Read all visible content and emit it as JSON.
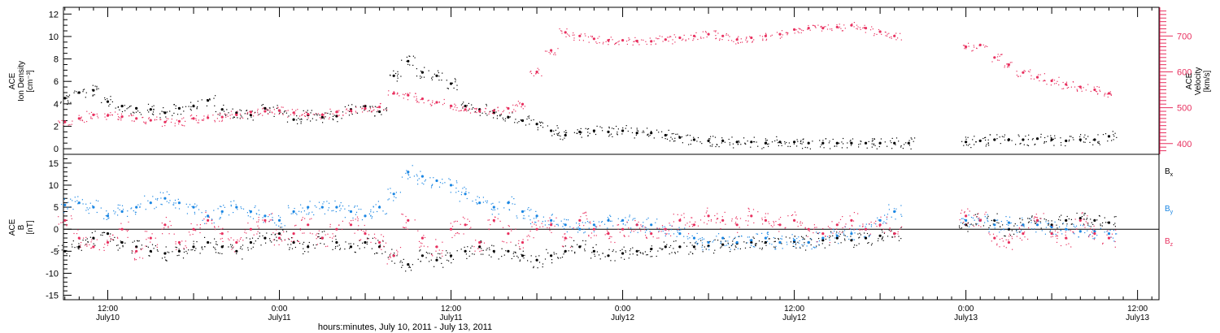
{
  "figure": {
    "xlabel": "hours:minutes, July 10, 2011 - July 13, 2011",
    "x_ticks": [
      {
        "time": "12:00",
        "date": "July10",
        "hours": 12
      },
      {
        "time": "0:00",
        "date": "July11",
        "hours": 24
      },
      {
        "time": "12:00",
        "date": "July11",
        "hours": 36
      },
      {
        "time": "0:00",
        "date": "July12",
        "hours": 48
      },
      {
        "time": "12:00",
        "date": "July12",
        "hours": 60
      },
      {
        "time": "0:00",
        "date": "July13",
        "hours": 72
      },
      {
        "time": "12:00",
        "date": "July13",
        "hours": 84
      }
    ],
    "x_range_hours": [
      8.9,
      85.5
    ],
    "colors": {
      "black": "#000000",
      "pink": "#e8305f",
      "blue": "#1a86e3"
    }
  },
  "chart_data": [
    {
      "type": "scatter",
      "panel": "top",
      "ylabel_left": [
        "ACE",
        "Ion Density",
        "[cm⁻³]"
      ],
      "ylabel_right": [
        "ACE",
        "Velocity",
        "[km/s]"
      ],
      "ylim_left": [
        -0.5,
        12.6
      ],
      "ylim_right": [
        370,
        780
      ],
      "yticks_left": [
        0,
        2,
        4,
        6,
        8,
        10,
        12
      ],
      "yticks_right": [
        400,
        500,
        600,
        700
      ],
      "grid": false,
      "series": [
        {
          "color": "#000000",
          "axis": "left",
          "x": [
            9,
            10,
            11,
            12,
            13,
            14,
            15,
            16,
            17,
            18,
            19,
            20,
            21,
            22,
            23,
            24,
            25,
            26,
            27,
            28,
            29,
            30,
            31,
            32,
            33,
            34,
            35,
            36,
            37,
            38,
            39,
            40,
            41,
            42,
            43,
            44,
            45,
            46,
            47,
            48,
            49,
            50,
            51,
            52,
            53,
            54,
            55,
            56,
            57,
            58,
            59,
            60,
            61,
            62,
            63,
            64,
            65,
            66,
            67,
            68,
            69,
            70,
            71,
            72,
            73,
            74,
            75,
            76,
            77,
            78,
            79,
            80,
            81,
            82
          ],
          "y": [
            4.5,
            5.0,
            5.2,
            4.2,
            3.8,
            3.6,
            3.5,
            3.2,
            3.6,
            3.8,
            4.3,
            3.5,
            3.2,
            3.0,
            3.6,
            3.4,
            2.6,
            3.0,
            2.8,
            2.9,
            3.5,
            3.8,
            3.3,
            6.5,
            7.8,
            6.8,
            6.5,
            5.8,
            3.8,
            3.5,
            3.2,
            2.8,
            2.5,
            2.2,
            1.6,
            1.2,
            1.5,
            1.6,
            1.5,
            1.6,
            1.4,
            1.4,
            1.2,
            1.0,
            0.8,
            0.7,
            0.7,
            0.6,
            0.6,
            0.5,
            0.6,
            0.6,
            0.5,
            0.5,
            0.5,
            0.5,
            0.5,
            0.5,
            0.5,
            0.5,
            null,
            null,
            null,
            0.6,
            0.7,
            0.8,
            0.8,
            0.8,
            0.9,
            0.8,
            0.7,
            0.8,
            0.8,
            1.1
          ]
        },
        {
          "color": "#e8305f",
          "axis": "right",
          "x": [
            9,
            10,
            11,
            12,
            13,
            14,
            15,
            16,
            17,
            18,
            19,
            20,
            21,
            22,
            23,
            24,
            25,
            26,
            27,
            28,
            29,
            30,
            31,
            32,
            33,
            34,
            35,
            36,
            37,
            38,
            39,
            40,
            41,
            42,
            43,
            44,
            45,
            46,
            47,
            48,
            49,
            50,
            51,
            52,
            53,
            54,
            55,
            56,
            57,
            58,
            59,
            60,
            61,
            62,
            63,
            64,
            65,
            66,
            67,
            68,
            69,
            70,
            71,
            72,
            73,
            74,
            75,
            76,
            77,
            78,
            79,
            80,
            81,
            82
          ],
          "y": [
            460,
            470,
            480,
            478,
            475,
            470,
            465,
            460,
            462,
            470,
            472,
            474,
            480,
            488,
            490,
            492,
            486,
            482,
            480,
            488,
            492,
            498,
            502,
            540,
            535,
            525,
            515,
            505,
            495,
            490,
            492,
            498,
            510,
            600,
            660,
            710,
            700,
            692,
            688,
            688,
            686,
            685,
            690,
            695,
            700,
            705,
            700,
            690,
            695,
            700,
            705,
            718,
            722,
            722,
            725,
            730,
            722,
            712,
            700,
            null,
            null,
            null,
            null,
            670,
            675,
            640,
            620,
            598,
            585,
            575,
            565,
            558,
            550,
            540
          ]
        }
      ]
    },
    {
      "type": "scatter",
      "panel": "bottom",
      "ylabel_left": [
        "ACE",
        "B",
        "[nT]"
      ],
      "ylim": [
        -16,
        17
      ],
      "yticks": [
        -15,
        -10,
        -5,
        0,
        5,
        10,
        15
      ],
      "zero_line": true,
      "grid": false,
      "legend": [
        {
          "label": "B",
          "sub": "x",
          "color": "#000000"
        },
        {
          "label": "B",
          "sub": "y",
          "color": "#1a86e3"
        },
        {
          "label": "B",
          "sub": "z",
          "color": "#e8305f"
        }
      ],
      "legend_position": "right",
      "series": [
        {
          "color": "#000000",
          "x": [
            9,
            10,
            11,
            12,
            13,
            14,
            15,
            16,
            17,
            18,
            19,
            20,
            21,
            22,
            23,
            24,
            25,
            26,
            27,
            28,
            29,
            30,
            31,
            32,
            33,
            34,
            35,
            36,
            37,
            38,
            39,
            40,
            41,
            42,
            43,
            44,
            45,
            46,
            47,
            48,
            49,
            50,
            51,
            52,
            53,
            54,
            55,
            56,
            57,
            58,
            59,
            60,
            61,
            62,
            63,
            64,
            65,
            66,
            67,
            68,
            69,
            70,
            71,
            72,
            73,
            74,
            75,
            76,
            77,
            78,
            79,
            80,
            81,
            82
          ],
          "y": [
            -5,
            -4,
            -2,
            -1,
            -3,
            -4,
            -5,
            -5.5,
            -5,
            -4,
            -3,
            -4,
            -5,
            -3,
            -2,
            -1,
            -3,
            -4,
            -2,
            -3,
            -4,
            -3,
            -4,
            -6,
            -8,
            -6,
            -7,
            -6,
            -5,
            -4,
            -5,
            -5,
            -6,
            -7,
            -6,
            -5,
            -4,
            -5,
            -6,
            -5.5,
            -5,
            -4.5,
            -4,
            -4,
            -4,
            -3.8,
            -3.5,
            -3.2,
            -3,
            -3,
            -3,
            -2.8,
            -3,
            -2.5,
            -2,
            -2.5,
            -2,
            -1.5,
            -1,
            null,
            null,
            null,
            null,
            1,
            2,
            2,
            0,
            1,
            2,
            1,
            2,
            2.5,
            2,
            1.5
          ]
        },
        {
          "color": "#1a86e3",
          "x": [
            9,
            10,
            11,
            12,
            13,
            14,
            15,
            16,
            17,
            18,
            19,
            20,
            21,
            22,
            23,
            24,
            25,
            26,
            27,
            28,
            29,
            30,
            31,
            32,
            33,
            34,
            35,
            36,
            37,
            38,
            39,
            40,
            41,
            42,
            43,
            44,
            45,
            46,
            47,
            48,
            49,
            50,
            51,
            52,
            53,
            54,
            55,
            56,
            57,
            58,
            59,
            60,
            61,
            62,
            63,
            64,
            65,
            66,
            67,
            68,
            69,
            70,
            71,
            72,
            73,
            74,
            75,
            76,
            77,
            78,
            79,
            80,
            81,
            82
          ],
          "y": [
            5.5,
            6,
            5,
            3,
            4,
            5,
            6,
            7,
            6,
            5,
            3,
            4,
            5,
            4,
            3,
            2,
            4,
            5,
            5,
            5,
            4,
            3,
            5,
            8,
            13,
            12,
            11,
            10,
            8,
            6,
            5,
            6,
            4,
            3,
            2,
            1,
            0,
            1,
            2,
            2,
            1,
            1,
            0,
            -1,
            -2,
            -3,
            -2,
            -3,
            -2.5,
            -2,
            -3,
            -2.5,
            -3,
            -2,
            -1.5,
            -1,
            0,
            2,
            4,
            null,
            null,
            null,
            null,
            2,
            2,
            1,
            1.5,
            1,
            1,
            0.5,
            0,
            -0.5,
            -0.5,
            -1
          ]
        },
        {
          "color": "#e8305f",
          "x": [
            9,
            10,
            11,
            12,
            13,
            14,
            15,
            16,
            17,
            18,
            19,
            20,
            21,
            22,
            23,
            24,
            25,
            26,
            27,
            28,
            29,
            30,
            31,
            32,
            33,
            34,
            35,
            36,
            37,
            38,
            39,
            40,
            41,
            42,
            43,
            44,
            45,
            46,
            47,
            48,
            49,
            50,
            51,
            52,
            53,
            54,
            55,
            56,
            57,
            58,
            59,
            60,
            61,
            62,
            63,
            64,
            65,
            66,
            67,
            68,
            69,
            70,
            71,
            72,
            73,
            74,
            75,
            76,
            77,
            78,
            79,
            80,
            81,
            82
          ],
          "y": [
            2,
            -2,
            -4,
            -3,
            0,
            -5,
            -2,
            1,
            -3,
            0,
            2,
            -1,
            -3,
            0,
            2,
            -2,
            -1,
            1,
            -2,
            0,
            1,
            -1,
            -3,
            -6,
            2,
            -2,
            -4,
            0,
            1,
            -3,
            2,
            -1,
            -3,
            0,
            1,
            -2,
            2,
            0,
            -1,
            0,
            1,
            -1,
            0,
            2,
            1,
            3,
            2,
            1,
            3,
            2,
            1,
            2,
            0,
            -1,
            1,
            2,
            0,
            1,
            -1,
            null,
            null,
            null,
            null,
            3,
            2,
            -2,
            -3,
            -1,
            2,
            -1,
            -2,
            2,
            -1,
            -2
          ]
        }
      ]
    }
  ]
}
